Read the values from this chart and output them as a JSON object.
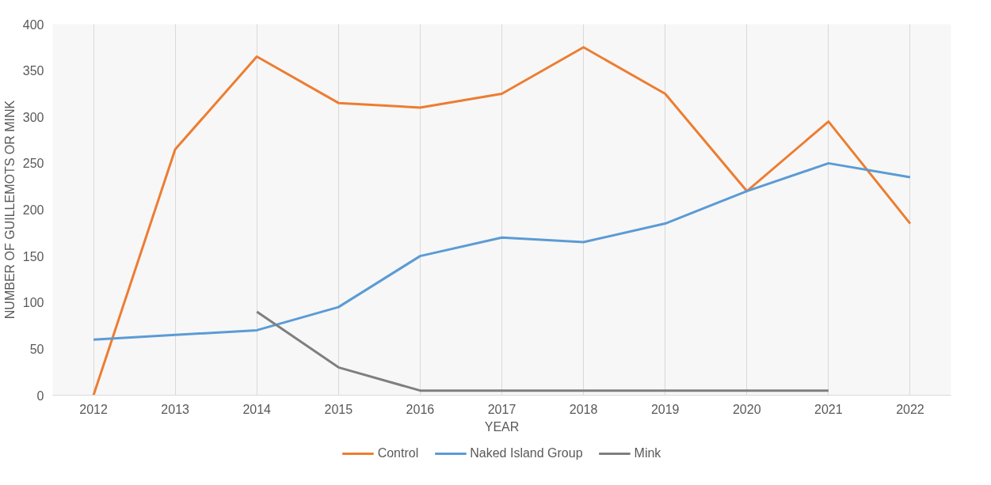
{
  "chart_data": {
    "type": "line",
    "xlabel": "YEAR",
    "ylabel": "NUMBER OF GUILLEMOTS OR MINK",
    "categories": [
      "2012",
      "2013",
      "2014",
      "2015",
      "2016",
      "2017",
      "2018",
      "2019",
      "2020",
      "2021",
      "2022"
    ],
    "series": [
      {
        "name": "Control",
        "color": "#ed7d31",
        "values": [
          0,
          265,
          365,
          315,
          310,
          325,
          375,
          325,
          220,
          295,
          185
        ]
      },
      {
        "name": "Naked Island Group",
        "color": "#5b9bd5",
        "values": [
          60,
          65,
          70,
          95,
          150,
          170,
          165,
          185,
          220,
          250,
          235
        ]
      },
      {
        "name": "Mink",
        "color": "#7f7f7f",
        "values": [
          null,
          null,
          90,
          30,
          5,
          5,
          5,
          5,
          5,
          5,
          null
        ]
      }
    ],
    "ylim": [
      0,
      400
    ],
    "yticks": [
      0,
      50,
      100,
      150,
      200,
      250,
      300,
      350,
      400
    ],
    "grid": "x",
    "legend": "bottom",
    "marker": "none",
    "line_style": "solid"
  }
}
